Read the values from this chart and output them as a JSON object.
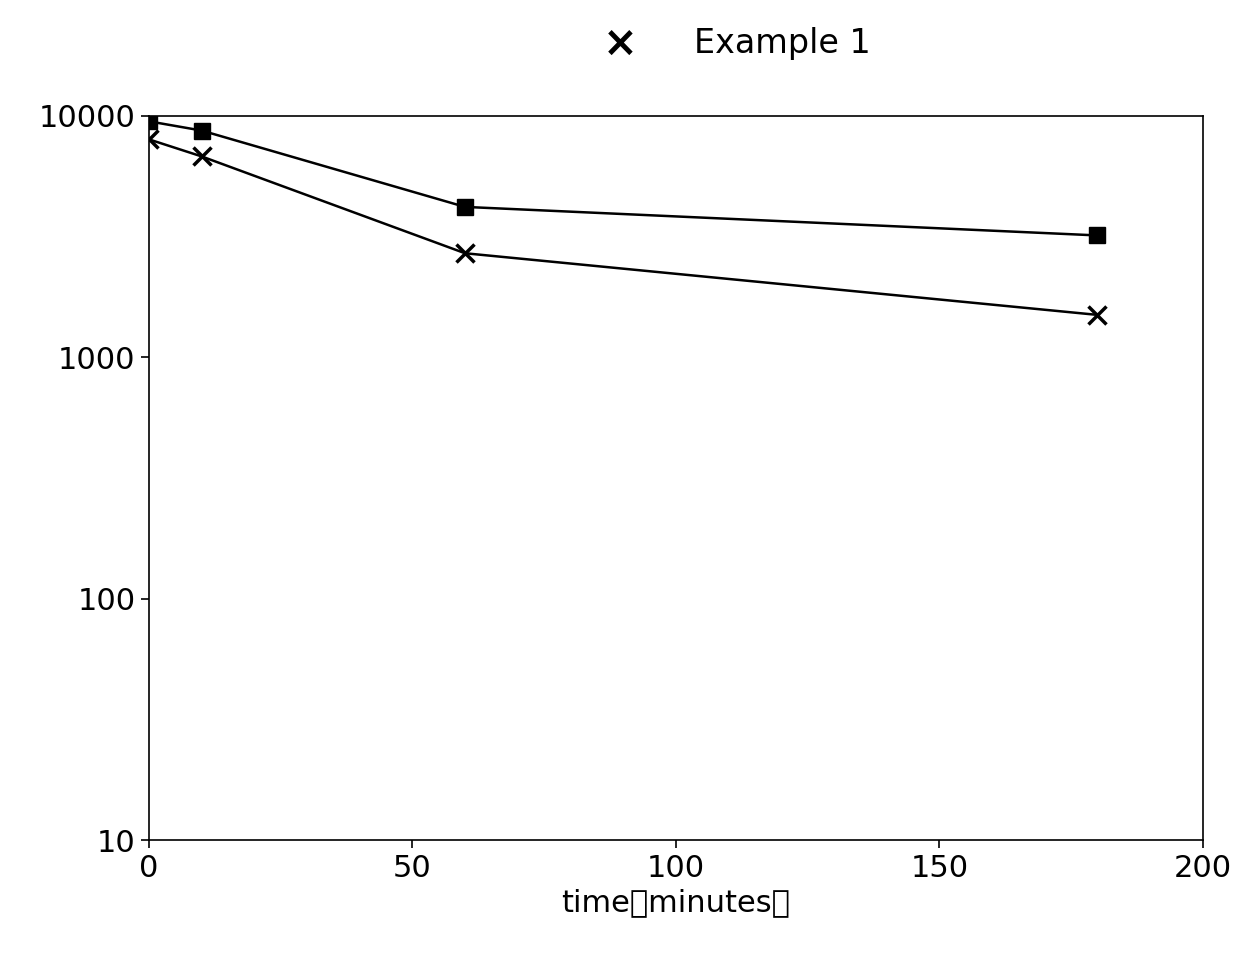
{
  "square_series": {
    "x": [
      0,
      10,
      60,
      180
    ],
    "y": [
      9500,
      8700,
      4200,
      3200
    ],
    "color": "#000000",
    "marker": "s",
    "markersize": 11,
    "linewidth": 1.8
  },
  "cross_series": {
    "x": [
      0,
      10,
      60,
      180
    ],
    "y": [
      8000,
      6800,
      2700,
      1500
    ],
    "color": "#000000",
    "marker": "x",
    "markersize": 13,
    "linewidth": 1.8,
    "markeredgewidth": 2.5
  },
  "xlabel": "time（minutes）",
  "xlim": [
    0,
    200
  ],
  "ylim": [
    10,
    10000
  ],
  "xticks": [
    0,
    50,
    100,
    150,
    200
  ],
  "yticks": [
    10,
    100,
    1000,
    10000
  ],
  "ytick_labels": [
    "10",
    "100",
    "1000",
    "10000"
  ],
  "background_color": "#ffffff",
  "legend_label": "Example 1",
  "legend_x_symbol": "×",
  "legend_fontsize": 24,
  "axis_fontsize": 22,
  "tick_fontsize": 22
}
